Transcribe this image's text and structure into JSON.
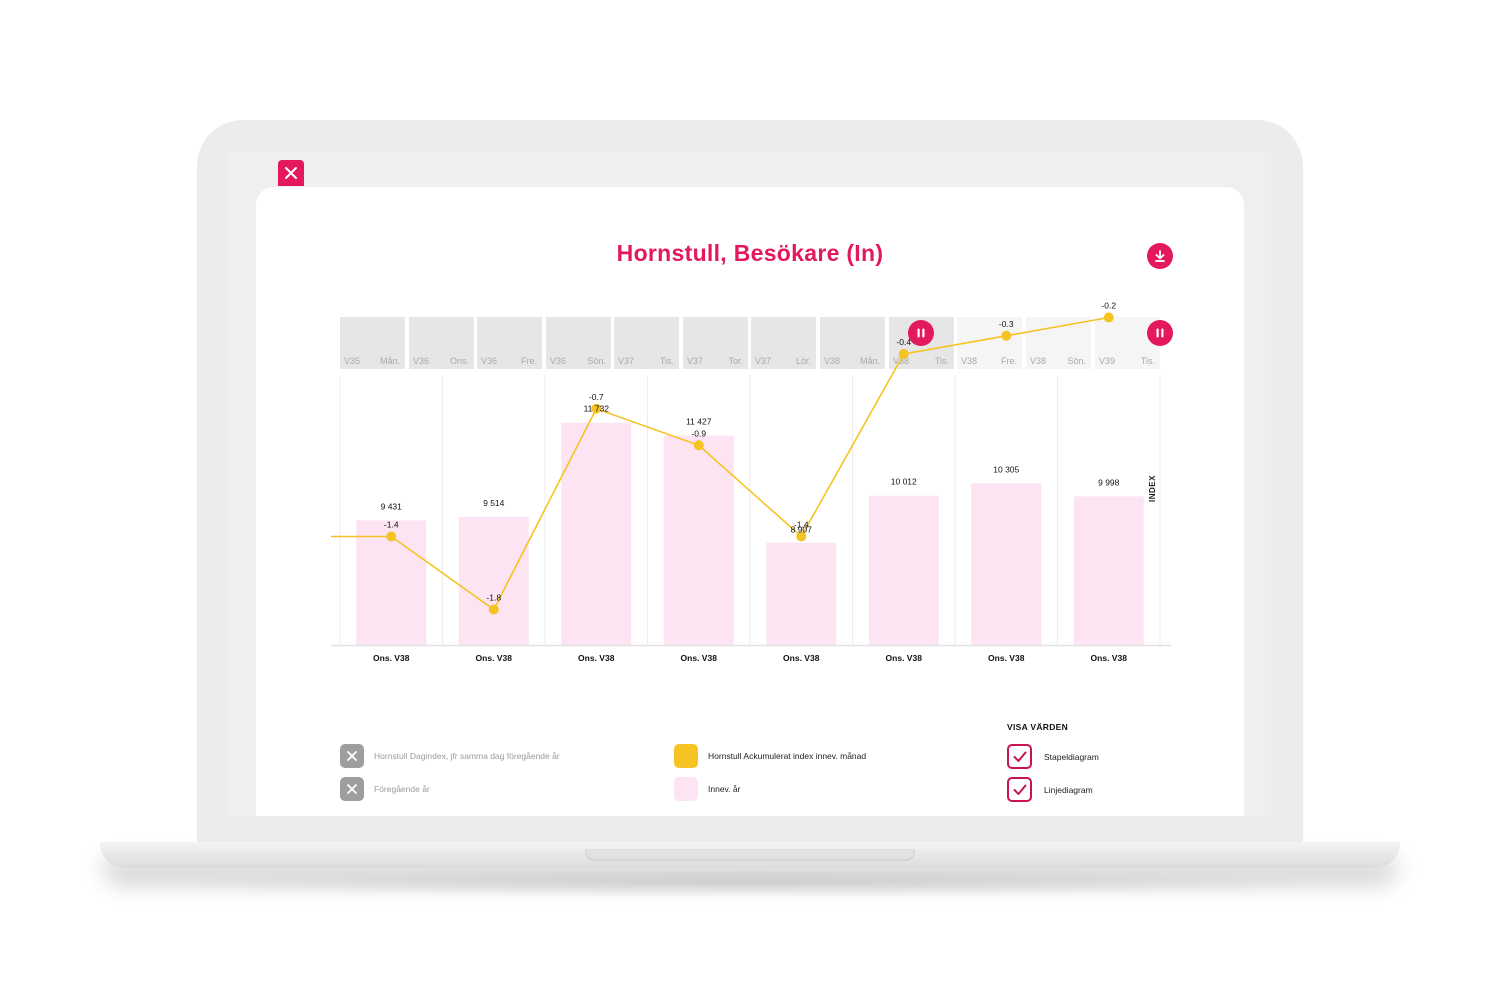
{
  "title": "Hornstull, Besökare (In)",
  "colors": {
    "accent": "#e3185f",
    "bar": "#fce4f2",
    "line": "#f6c324",
    "strip_dark": "#e6e6e6",
    "strip_light": "#f5f5f5",
    "legend_disabled": "#9e9e9e"
  },
  "icons": {
    "close": "close-icon",
    "download": "download-icon",
    "pause": "pause-icon",
    "check": "check-icon"
  },
  "strip": [
    {
      "week": "V35",
      "day": "Mån.",
      "shade": "dark"
    },
    {
      "week": "V36",
      "day": "Ons.",
      "shade": "dark"
    },
    {
      "week": "V36",
      "day": "Fre.",
      "shade": "dark"
    },
    {
      "week": "V36",
      "day": "Sön.",
      "shade": "dark"
    },
    {
      "week": "V37",
      "day": "Tis.",
      "shade": "dark"
    },
    {
      "week": "V37",
      "day": "Tor.",
      "shade": "dark"
    },
    {
      "week": "V37",
      "day": "Lör.",
      "shade": "dark"
    },
    {
      "week": "V38",
      "day": "Mån.",
      "shade": "dark"
    },
    {
      "week": "V38",
      "day": "Tis.",
      "shade": "dark"
    },
    {
      "week": "V38",
      "day": "Fre.",
      "shade": "light"
    },
    {
      "week": "V38",
      "day": "Sön.",
      "shade": "light"
    },
    {
      "week": "V39",
      "day": "Tis.",
      "shade": "light"
    }
  ],
  "chart_data": {
    "type": "bar",
    "categories": [
      "Ons. V38",
      "Ons. V38",
      "Ons. V38",
      "Ons. V38",
      "Ons. V38",
      "Ons. V38",
      "Ons. V38",
      "Ons. V38"
    ],
    "series": [
      {
        "name": "Innev. år",
        "type": "bar",
        "values": [
          9431,
          9514,
          11732,
          11427,
          8907,
          10012,
          10305,
          9998
        ],
        "labels": [
          "9 431",
          "9 514",
          "11 732",
          "11 427",
          "8 907",
          "10 012",
          "10 305",
          "9 998"
        ],
        "color": "#fce4f2"
      },
      {
        "name": "Hornstull Ackumulerat index innev. månad",
        "type": "line",
        "axis": "right",
        "values": [
          -1.4,
          -1.8,
          -0.7,
          -0.9,
          -1.4,
          -0.4,
          -0.3,
          -0.2
        ],
        "labels": [
          "-1.4",
          "-1.8",
          "-0.7",
          "-0.9",
          "-1.4",
          "-0.4",
          "-0.3",
          "-0.2"
        ],
        "color": "#f6c324"
      }
    ],
    "y2label": "INDEX",
    "grid": true
  },
  "legend": [
    {
      "label": "Hornstull Dagindex, jfr samma dag föregående år",
      "state": "disabled"
    },
    {
      "label": "Föregående år",
      "state": "disabled"
    },
    {
      "label": "Hornstull Ackumulerat index innev. månad",
      "state": "active-line"
    },
    {
      "label": "Innev. år",
      "state": "active-bar"
    }
  ],
  "visa": {
    "title": "VISA VÄRDEN",
    "options": [
      {
        "label": "Stapeldiagram",
        "checked": true
      },
      {
        "label": "Linjediagram",
        "checked": true
      }
    ]
  }
}
